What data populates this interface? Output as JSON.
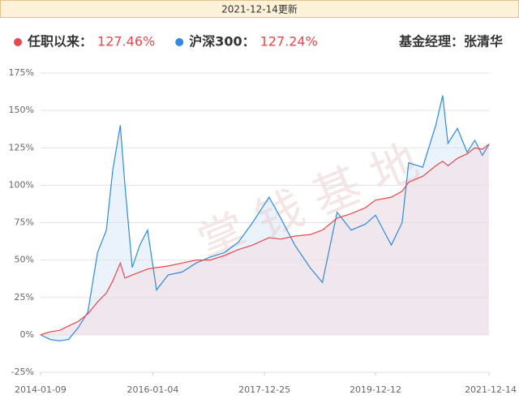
{
  "chart_data": {
    "type": "line",
    "banner": "2021-12-14更新",
    "manager": "基金经理：张清华",
    "watermark": "掌钱基地",
    "x": [
      "2014-01-09",
      "2014-03-10",
      "2014-05-12",
      "2014-07-10",
      "2014-09-10",
      "2014-11-10",
      "2015-01-12",
      "2015-03-10",
      "2015-04-20",
      "2015-06-08",
      "2015-07-08",
      "2015-08-24",
      "2015-10-12",
      "2015-12-01",
      "2016-01-28",
      "2016-04-11",
      "2016-07-11",
      "2016-10-10",
      "2017-01-09",
      "2017-04-10",
      "2017-07-10",
      "2017-10-09",
      "2018-01-24",
      "2018-04-09",
      "2018-07-09",
      "2018-10-15",
      "2019-01-03",
      "2019-04-08",
      "2019-07-08",
      "2019-10-08",
      "2019-12-12",
      "2020-03-23",
      "2020-06-01",
      "2020-07-13",
      "2020-10-12",
      "2021-01-04",
      "2021-02-18",
      "2021-03-24",
      "2021-05-24",
      "2021-07-26",
      "2021-09-13",
      "2021-11-01",
      "2021-12-14"
    ],
    "series": [
      {
        "name": "任职以来：",
        "return_label": "127.46%",
        "color": "#e8474c",
        "fill": "#f1e4ea",
        "values": [
          0,
          2,
          3,
          6,
          9,
          14,
          22,
          28,
          36,
          48,
          38,
          40,
          42,
          44,
          45,
          46,
          48,
          50,
          50,
          53,
          57,
          60,
          65,
          64,
          66,
          67,
          70,
          78,
          81,
          85,
          90,
          92,
          96,
          102,
          106,
          113,
          116,
          113,
          118,
          121,
          125,
          124,
          127.46
        ]
      },
      {
        "name": "沪深300：",
        "return_label": "127.24%",
        "color": "#2f8ae6",
        "fill": "#e6f0fb",
        "values": [
          0,
          -3,
          -4,
          -3,
          5,
          15,
          55,
          70,
          110,
          140,
          100,
          45,
          60,
          70,
          30,
          40,
          42,
          48,
          52,
          55,
          62,
          75,
          92,
          78,
          60,
          45,
          35,
          82,
          70,
          74,
          80,
          60,
          75,
          115,
          112,
          140,
          160,
          128,
          138,
          122,
          130,
          120,
          127.24
        ]
      }
    ],
    "xlim": [
      "2014-01-09",
      "2021-12-14"
    ],
    "xticks": [
      "2014-01-09",
      "2016-01-04",
      "2017-12-25",
      "2019-12-12",
      "2021-12-14"
    ],
    "ylim": [
      -25,
      175
    ],
    "yticks": [
      {
        "value": -25,
        "label": "-25%"
      },
      {
        "value": 0,
        "label": "0%"
      },
      {
        "value": 25,
        "label": "25%"
      },
      {
        "value": 50,
        "label": "50%"
      },
      {
        "value": 75,
        "label": "75%"
      },
      {
        "value": 100,
        "label": "100%"
      },
      {
        "value": 125,
        "label": "125%"
      },
      {
        "value": 150,
        "label": "150%"
      },
      {
        "value": 175,
        "label": "175%"
      }
    ],
    "grid": true
  }
}
